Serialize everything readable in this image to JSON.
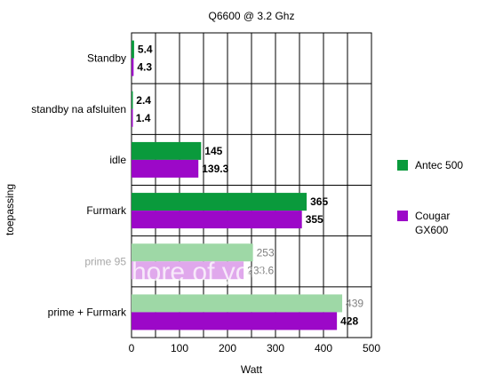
{
  "chart_data": {
    "type": "bar",
    "orientation": "horizontal",
    "title": "Q6600 @ 3.2 Ghz",
    "xlabel": "Watt",
    "ylabel": "toepassing",
    "xlim": [
      0,
      500
    ],
    "xticks": [
      0,
      100,
      200,
      300,
      400,
      500
    ],
    "grid": true,
    "legend_position": "right",
    "categories": [
      "Standby",
      "standby na afsluiten",
      "idle",
      "Furmark",
      "prime 95",
      "prime + Furmark"
    ],
    "series": [
      {
        "name": "Antec 500",
        "color": "#0a9a3c",
        "values": [
          5.4,
          2.4,
          145,
          365,
          253,
          439
        ],
        "labels": [
          "5.4",
          "2.4",
          "145",
          "365",
          "253",
          "439"
        ]
      },
      {
        "name": "Cougar GX600",
        "color": "#9c08c8",
        "values": [
          4.3,
          1.4,
          139.3,
          355,
          233.6,
          428
        ],
        "labels": [
          "4.3",
          "1.4",
          "139.3",
          "355",
          "233.6",
          "428"
        ]
      }
    ]
  },
  "overlay": {
    "text": "hore of you"
  }
}
